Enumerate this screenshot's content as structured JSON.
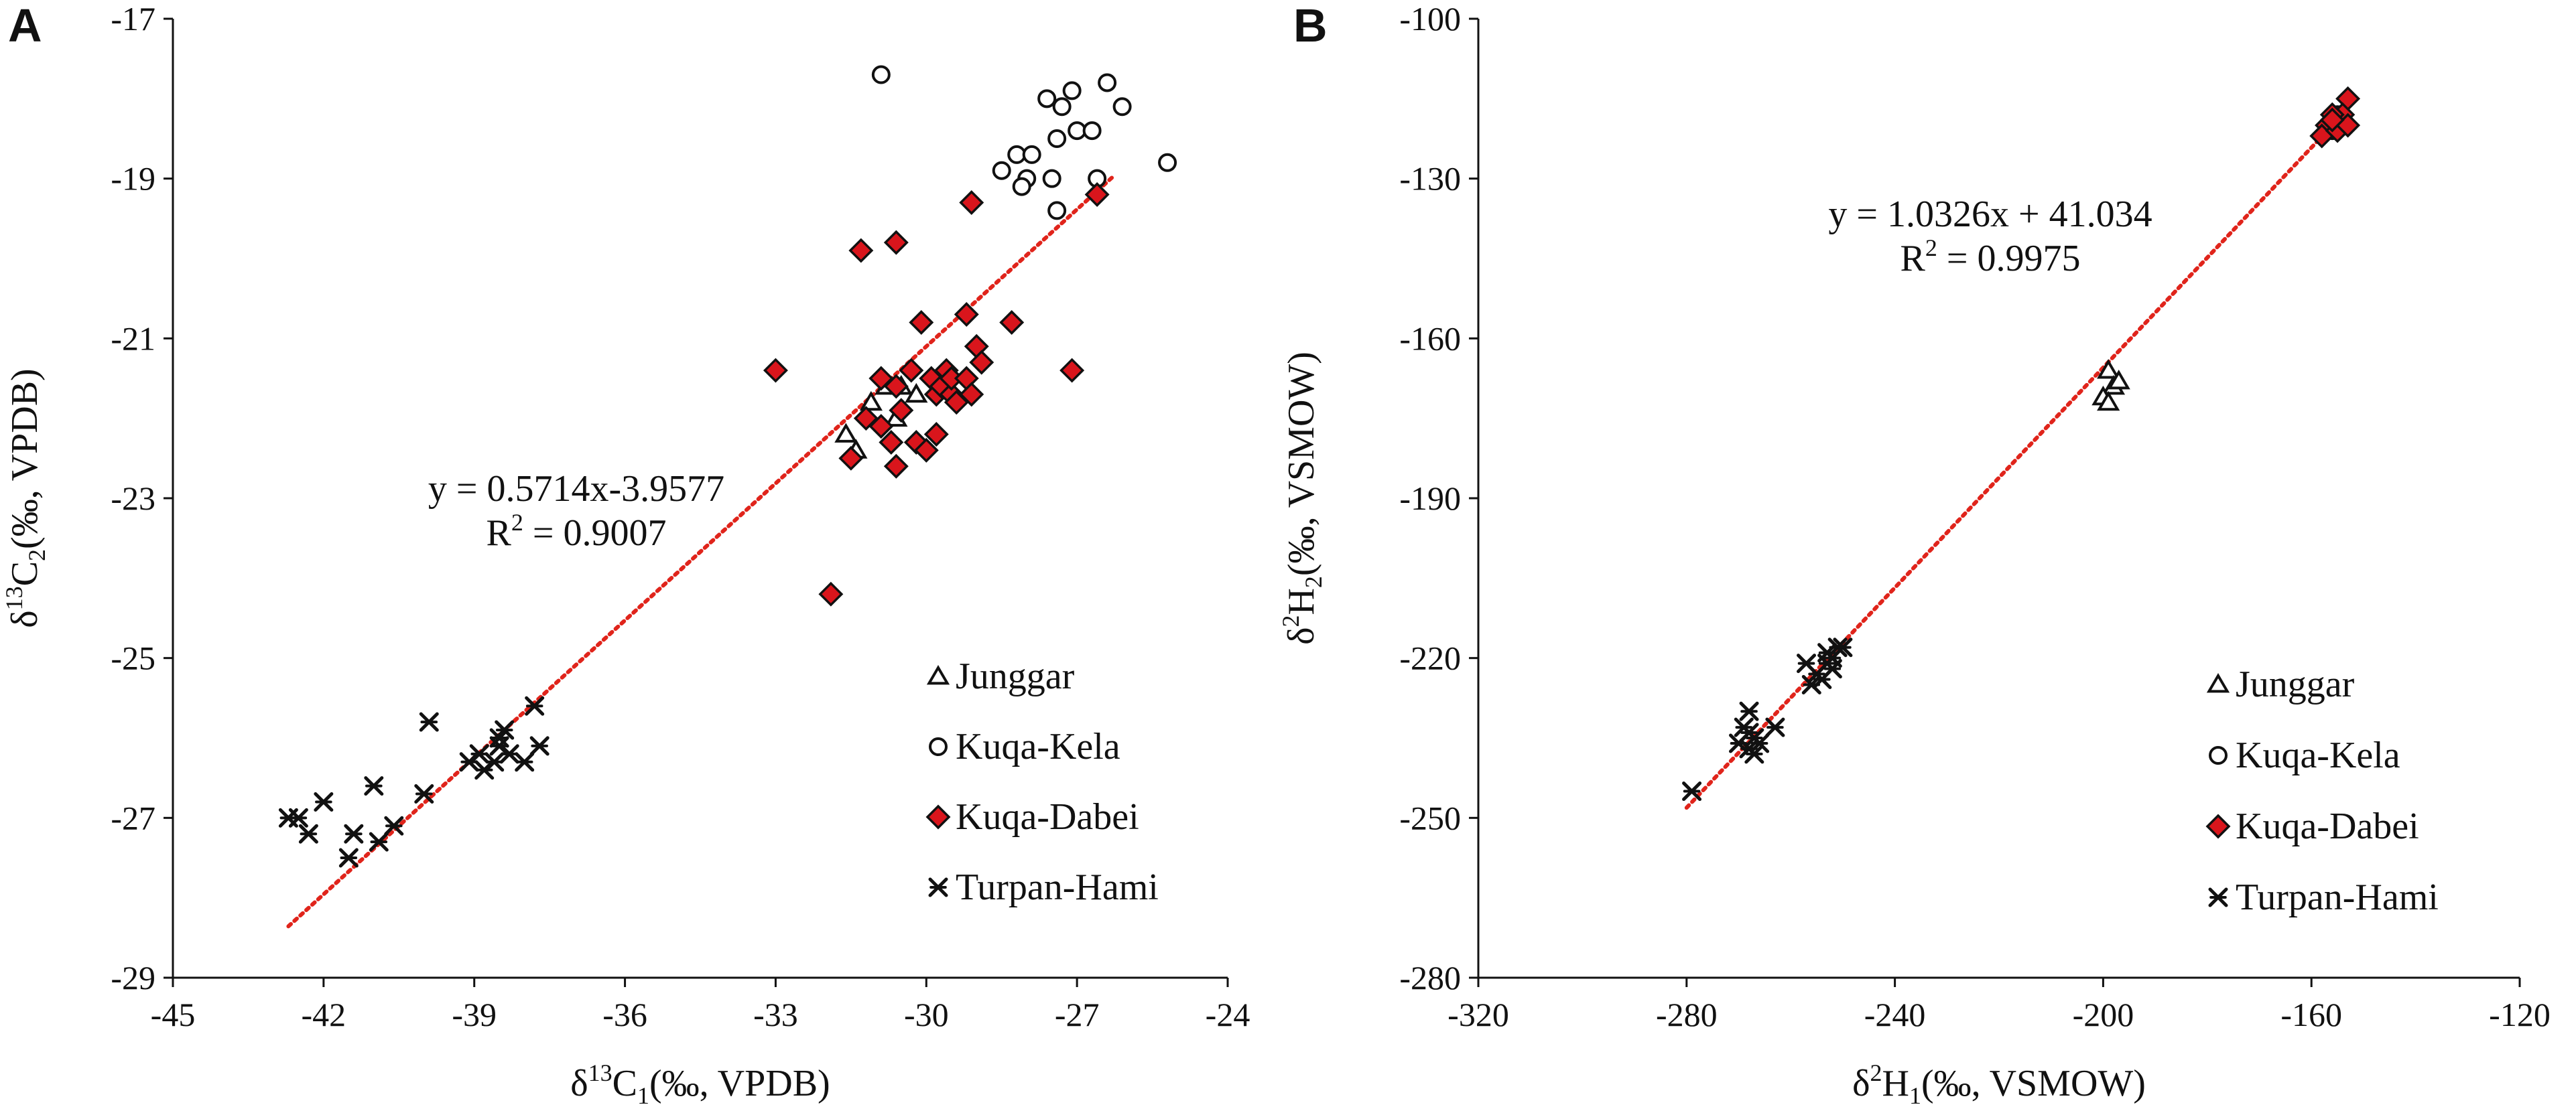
{
  "chart_data": [
    {
      "panel": "A",
      "type": "scatter",
      "title": "",
      "xlabel": {
        "base": "δ",
        "sup": "13",
        "main": "C",
        "sub": "1",
        "tail": "(‰, VPDB)"
      },
      "ylabel": {
        "base": "δ",
        "sup": "13",
        "main": "C",
        "sub": "2",
        "tail": "(‰, VPDB)"
      },
      "xlim": [
        -45,
        -24
      ],
      "ylim": [
        -29,
        -17
      ],
      "xticks": [
        -45,
        -42,
        -39,
        -36,
        -33,
        -30,
        -27,
        -24
      ],
      "yticks": [
        -29,
        -27,
        -25,
        -23,
        -21,
        -19,
        -17
      ],
      "trendline": {
        "x0": -42.7,
        "x1": -26.3,
        "slope": 0.5714,
        "intercept": -3.9577
      },
      "equation": "y = 0.5714x-3.9577",
      "r2": {
        "prefix": "R",
        "sup": "2",
        "suffix": " = 0.9007"
      },
      "legend_position": "lower-right",
      "series": [
        {
          "name": "Junggar",
          "marker": "triangle",
          "points": [
            [
              -31.6,
              -22.2
            ],
            [
              -31.4,
              -22.4
            ],
            [
              -31.1,
              -21.8
            ],
            [
              -30.8,
              -21.6
            ],
            [
              -30.6,
              -22.0
            ],
            [
              -30.5,
              -21.6
            ],
            [
              -30.2,
              -21.7
            ]
          ]
        },
        {
          "name": "Kuqa-Kela",
          "marker": "circle",
          "points": [
            [
              -30.9,
              -17.7
            ],
            [
              -28.5,
              -18.9
            ],
            [
              -28.2,
              -18.7
            ],
            [
              -27.9,
              -18.7
            ],
            [
              -28.0,
              -19.0
            ],
            [
              -28.1,
              -19.1
            ],
            [
              -27.6,
              -18.0
            ],
            [
              -27.3,
              -18.1
            ],
            [
              -27.1,
              -17.9
            ],
            [
              -27.4,
              -18.5
            ],
            [
              -27.0,
              -18.4
            ],
            [
              -26.7,
              -18.4
            ],
            [
              -26.4,
              -17.8
            ],
            [
              -26.1,
              -18.1
            ],
            [
              -27.5,
              -19.0
            ],
            [
              -27.4,
              -19.4
            ],
            [
              -26.6,
              -19.0
            ],
            [
              -25.2,
              -18.8
            ]
          ]
        },
        {
          "name": "Kuqa-Dabei",
          "marker": "diamond",
          "points": [
            [
              -33.0,
              -21.4
            ],
            [
              -31.9,
              -24.2
            ],
            [
              -31.5,
              -22.5
            ],
            [
              -31.3,
              -19.9
            ],
            [
              -31.2,
              -22.0
            ],
            [
              -30.9,
              -22.1
            ],
            [
              -30.9,
              -21.5
            ],
            [
              -30.7,
              -22.3
            ],
            [
              -30.6,
              -21.6
            ],
            [
              -30.5,
              -21.9
            ],
            [
              -30.6,
              -22.6
            ],
            [
              -30.6,
              -19.8
            ],
            [
              -30.3,
              -21.4
            ],
            [
              -30.2,
              -22.3
            ],
            [
              -30.0,
              -22.4
            ],
            [
              -30.1,
              -20.8
            ],
            [
              -29.9,
              -21.5
            ],
            [
              -29.8,
              -21.7
            ],
            [
              -29.7,
              -21.6
            ],
            [
              -29.6,
              -21.4
            ],
            [
              -29.8,
              -22.2
            ],
            [
              -29.5,
              -21.7
            ],
            [
              -29.5,
              -21.5
            ],
            [
              -29.4,
              -21.8
            ],
            [
              -29.2,
              -21.5
            ],
            [
              -29.2,
              -20.7
            ],
            [
              -29.1,
              -21.7
            ],
            [
              -29.0,
              -21.1
            ],
            [
              -28.9,
              -21.3
            ],
            [
              -29.1,
              -19.3
            ],
            [
              -28.3,
              -20.8
            ],
            [
              -27.1,
              -21.4
            ],
            [
              -26.6,
              -19.2
            ]
          ]
        },
        {
          "name": "Turpan-Hami",
          "marker": "star",
          "points": [
            [
              -42.7,
              -27.0
            ],
            [
              -42.5,
              -27.0
            ],
            [
              -42.3,
              -27.2
            ],
            [
              -42.0,
              -26.8
            ],
            [
              -41.5,
              -27.5
            ],
            [
              -41.4,
              -27.2
            ],
            [
              -41.0,
              -26.6
            ],
            [
              -40.9,
              -27.3
            ],
            [
              -40.6,
              -27.1
            ],
            [
              -40.0,
              -26.7
            ],
            [
              -39.9,
              -25.8
            ],
            [
              -39.1,
              -26.3
            ],
            [
              -38.9,
              -26.2
            ],
            [
              -38.8,
              -26.4
            ],
            [
              -38.6,
              -26.3
            ],
            [
              -38.5,
              -26.0
            ],
            [
              -38.4,
              -25.9
            ],
            [
              -38.3,
              -26.2
            ],
            [
              -38.5,
              -26.1
            ],
            [
              -38.0,
              -26.3
            ],
            [
              -37.8,
              -25.6
            ],
            [
              -37.7,
              -26.1
            ]
          ]
        }
      ]
    },
    {
      "panel": "B",
      "type": "scatter",
      "title": "",
      "xlabel": {
        "base": "δ",
        "sup": "2",
        "main": "H",
        "sub": "1",
        "tail": "(‰, VSMOW)"
      },
      "ylabel": {
        "base": "δ",
        "sup": "2",
        "main": "H",
        "sub": "2",
        "tail": "(‰, VSMOW)"
      },
      "xlim": [
        -320,
        -120
      ],
      "ylim": [
        -280,
        -100
      ],
      "xticks": [
        -320,
        -280,
        -240,
        -200,
        -160,
        -120
      ],
      "yticks": [
        -280,
        -250,
        -220,
        -190,
        -160,
        -130,
        -100
      ],
      "trendline": {
        "x0": -280,
        "x1": -153,
        "slope": 1.0326,
        "intercept": 41.034
      },
      "equation": "y = 1.0326x + 41.034",
      "r2": {
        "prefix": "R",
        "sup": "2",
        "suffix": " = 0.9975"
      },
      "legend_position": "lower-right",
      "series": [
        {
          "name": "Junggar",
          "marker": "triangle",
          "points": [
            [
              -199,
              -166
            ],
            [
              -198,
              -169
            ],
            [
              -200,
              -171
            ],
            [
              -199,
              -172
            ],
            [
              -197,
              -168
            ]
          ]
        },
        {
          "name": "Kuqa-Kela",
          "marker": "circle",
          "points": [
            [
              -156,
              -119
            ],
            [
              -155,
              -118
            ],
            [
              -154,
              -119
            ],
            [
              -156,
              -121
            ],
            [
              -155,
              -120
            ]
          ]
        },
        {
          "name": "Kuqa-Dabei",
          "marker": "diamond",
          "points": [
            [
              -153,
              -115
            ],
            [
              -154,
              -118
            ],
            [
              -156,
              -118
            ],
            [
              -157,
              -120
            ],
            [
              -158,
              -122
            ],
            [
              -155,
              -121
            ],
            [
              -153,
              -120
            ],
            [
              -156,
              -119
            ]
          ]
        },
        {
          "name": "Turpan-Hami",
          "marker": "star",
          "points": [
            [
              -279,
              -245
            ],
            [
              -270,
              -236
            ],
            [
              -269,
              -233
            ],
            [
              -268,
              -230
            ],
            [
              -268,
              -234
            ],
            [
              -268,
              -237
            ],
            [
              -267,
              -235
            ],
            [
              -267,
              -238
            ],
            [
              -266,
              -236
            ],
            [
              -263,
              -233
            ],
            [
              -257,
              -221
            ],
            [
              -256,
              -225
            ],
            [
              -255,
              -223
            ],
            [
              -254,
              -224
            ],
            [
              -253,
              -219
            ],
            [
              -253,
              -221
            ],
            [
              -252,
              -222
            ],
            [
              -252,
              -220
            ],
            [
              -251,
              -218
            ],
            [
              -250,
              -218
            ]
          ]
        }
      ]
    }
  ]
}
